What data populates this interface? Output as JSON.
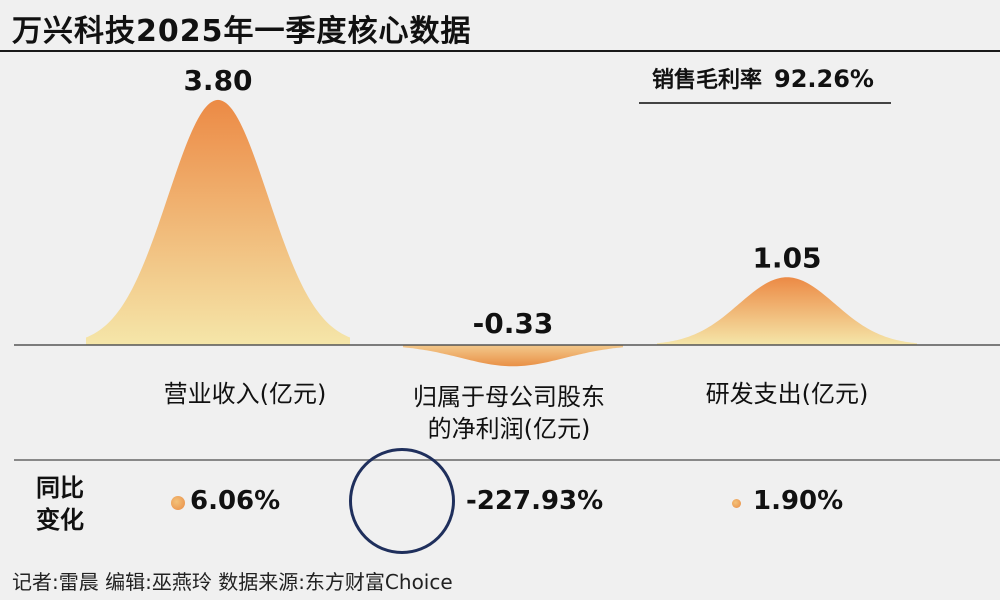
{
  "title": "万兴科技2025年一季度核心数据",
  "gross_margin": {
    "label": "销售毛利率",
    "value": "92.26%"
  },
  "chart_data": {
    "type": "area",
    "categories": [
      "营业收入(亿元)",
      "归属于母公司股东的净利润(亿元)",
      "研发支出(亿元)"
    ],
    "values": [
      3.8,
      -0.33,
      1.05
    ],
    "value_labels": [
      "3.80",
      "-0.33",
      "1.05"
    ],
    "colors": {
      "peak": "#ec8a45",
      "base": "#f5e6a9"
    }
  },
  "category_lines": [
    [
      "营业收入(亿元)"
    ],
    [
      "归属于母公司股东",
      "的净利润(亿元)"
    ],
    [
      "研发支出(亿元)"
    ]
  ],
  "yoy": {
    "label_line1": "同比",
    "label_line2": "变化",
    "values": [
      "6.06%",
      "-227.93%",
      "1.90%"
    ],
    "dot_colors": [
      "#ee9a56",
      "#e5e5e5",
      "#f0a45c"
    ]
  },
  "footer": "记者:雷晨  编辑:巫燕玲  数据来源:东方财富Choice"
}
